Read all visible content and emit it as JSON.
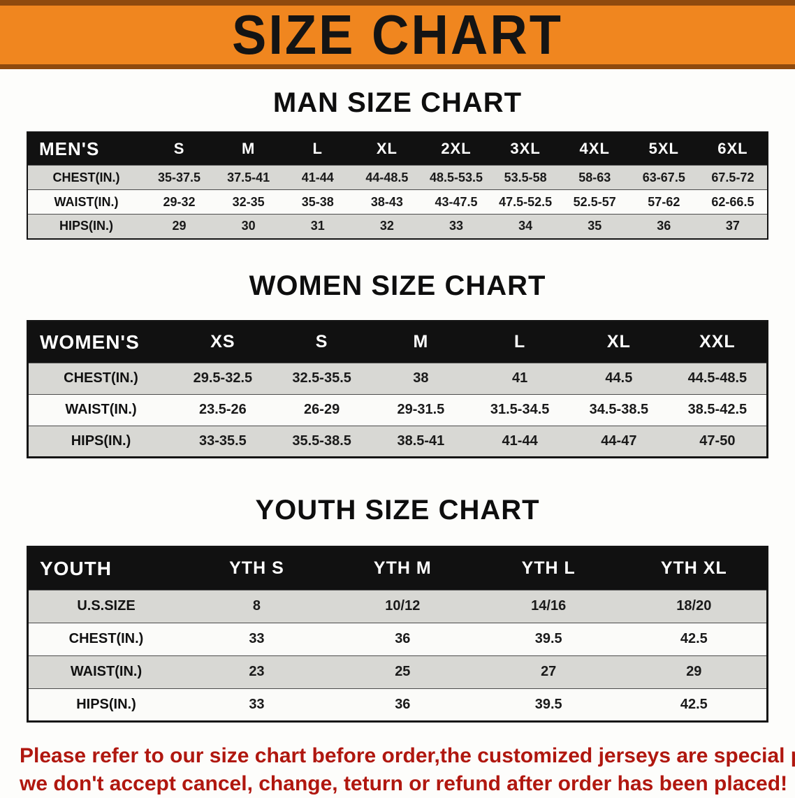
{
  "banner": {
    "title": "SIZE CHART",
    "bg_color": "#f0861f",
    "border_color": "#8f4a0e"
  },
  "sections": [
    {
      "heading": "MAN SIZE CHART",
      "table": {
        "corner": "MEN'S",
        "columns": [
          "S",
          "M",
          "L",
          "XL",
          "2XL",
          "3XL",
          "4XL",
          "5XL",
          "6XL"
        ],
        "rows": [
          {
            "label": "CHEST(IN.)",
            "values": [
              "35-37.5",
              "37.5-41",
              "41-44",
              "44-48.5",
              "48.5-53.5",
              "53.5-58",
              "58-63",
              "63-67.5",
              "67.5-72"
            ]
          },
          {
            "label": "WAIST(IN.)",
            "values": [
              "29-32",
              "32-35",
              "35-38",
              "38-43",
              "43-47.5",
              "47.5-52.5",
              "52.5-57",
              "57-62",
              "62-66.5"
            ]
          },
          {
            "label": "HIPS(IN.)",
            "values": [
              "29",
              "30",
              "31",
              "32",
              "33",
              "34",
              "35",
              "36",
              "37"
            ]
          }
        ]
      }
    },
    {
      "heading": "WOMEN SIZE CHART",
      "table": {
        "corner": "WOMEN'S",
        "columns": [
          "XS",
          "S",
          "M",
          "L",
          "XL",
          "XXL"
        ],
        "rows": [
          {
            "label": "CHEST(IN.)",
            "values": [
              "29.5-32.5",
              "32.5-35.5",
              "38",
              "41",
              "44.5",
              "44.5-48.5"
            ]
          },
          {
            "label": "WAIST(IN.)",
            "values": [
              "23.5-26",
              "26-29",
              "29-31.5",
              "31.5-34.5",
              "34.5-38.5",
              "38.5-42.5"
            ]
          },
          {
            "label": "HIPS(IN.)",
            "values": [
              "33-35.5",
              "35.5-38.5",
              "38.5-41",
              "41-44",
              "44-47",
              "47-50"
            ]
          }
        ]
      }
    },
    {
      "heading": "YOUTH SIZE CHART",
      "table": {
        "corner": "YOUTH",
        "columns": [
          "YTH S",
          "YTH M",
          "YTH L",
          "YTH XL"
        ],
        "rows": [
          {
            "label": "U.S.SIZE",
            "values": [
              "8",
              "10/12",
              "14/16",
              "18/20"
            ]
          },
          {
            "label": "CHEST(IN.)",
            "values": [
              "33",
              "36",
              "39.5",
              "42.5"
            ]
          },
          {
            "label": "WAIST(IN.)",
            "values": [
              "23",
              "25",
              "27",
              "29"
            ]
          },
          {
            "label": "HIPS(IN.)",
            "values": [
              "33",
              "36",
              "39.5",
              "42.5"
            ]
          }
        ]
      }
    }
  ],
  "notice": {
    "line1": "Please refer to our size chart before order,the customized jerseys are special products,",
    "line2": "we don't accept cancel, change, teturn or refund after order has been placed!",
    "color": "#b0170f"
  }
}
